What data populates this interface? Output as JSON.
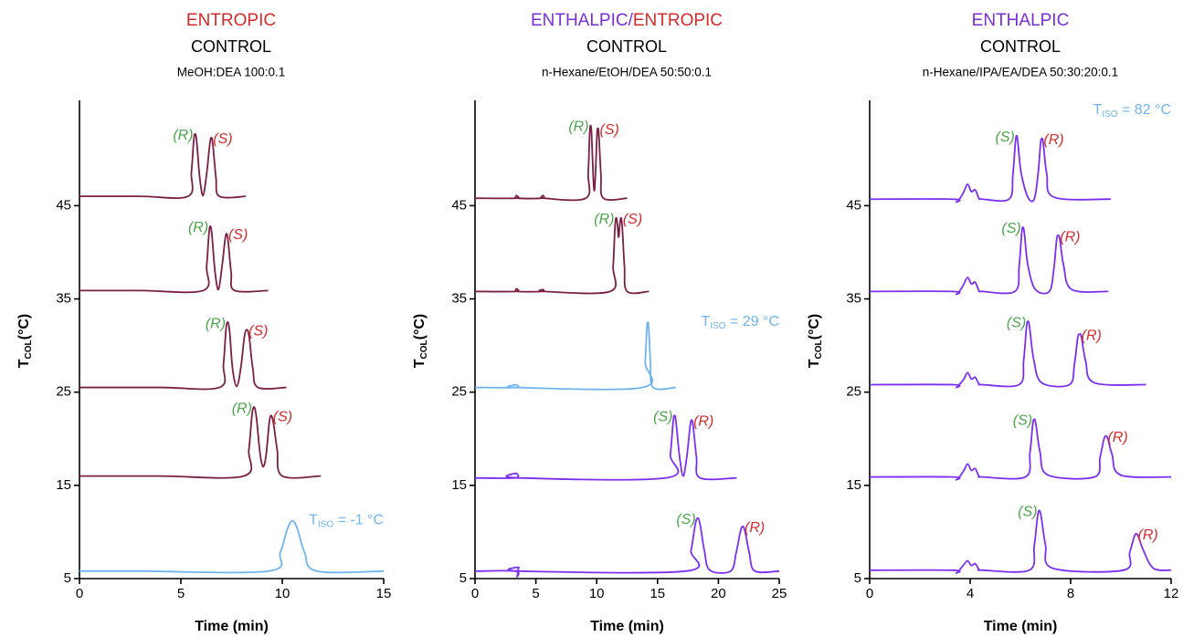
{
  "chart_data": [
    {
      "type": "line",
      "title": [
        {
          "text": "ENTROPIC",
          "color": "#d42a2a"
        }
      ],
      "subtitle": "CONTROL",
      "mobile_phase": "MeOH:DEA 100:0.1",
      "xlabel": "Time (min)",
      "ylabel": {
        "main": "T",
        "sub": "COL",
        "rest": "(°C)"
      },
      "xlim": [
        0,
        15
      ],
      "xticks": [
        0,
        5,
        10,
        15
      ],
      "ylim": [
        5,
        56
      ],
      "yticks": [
        5,
        15,
        25,
        35,
        45
      ],
      "series": [
        {
          "color": "#6fb4f0",
          "annotation": {
            "main": "T",
            "sub": "ISO",
            "rest": " = -1 °C"
          },
          "x": [
            0,
            3,
            9.3,
            9.9,
            10.25,
            10.5,
            10.75,
            11.1,
            11.7,
            15
          ],
          "values": [
            5.8,
            5.8,
            5.8,
            7.8,
            10.3,
            11.2,
            10.3,
            7.8,
            5.8,
            5.8
          ]
        },
        {
          "color": "#7a1f45",
          "labels": [
            {
              "text": "(R)",
              "color": "#4aa64a"
            },
            {
              "text": "(S)",
              "color": "#d42a2a"
            }
          ],
          "x": [
            0,
            4,
            8.1,
            8.35,
            8.5,
            8.6,
            8.72,
            8.9,
            9.05,
            9.2,
            9.35,
            9.45,
            9.57,
            9.75,
            10.0,
            11.9
          ],
          "values": [
            16,
            16,
            16,
            18.8,
            22.4,
            23.4,
            22.4,
            18.5,
            17.0,
            18.2,
            21.6,
            22.5,
            21.6,
            18.8,
            16.0,
            16.0
          ]
        },
        {
          "color": "#7a1f45",
          "labels": [
            {
              "text": "(R)",
              "color": "#4aa64a"
            },
            {
              "text": "(S)",
              "color": "#d42a2a"
            }
          ],
          "x": [
            0,
            4,
            6.9,
            7.1,
            7.22,
            7.3,
            7.4,
            7.55,
            7.75,
            7.95,
            8.13,
            8.25,
            8.37,
            8.55,
            8.8,
            10.2
          ],
          "values": [
            25.5,
            25.5,
            25.5,
            28,
            31.6,
            32.5,
            31.6,
            27.5,
            25.6,
            27.5,
            30.9,
            31.7,
            30.9,
            27.5,
            25.5,
            25.5
          ]
        },
        {
          "color": "#7a1f45",
          "labels": [
            {
              "text": "(R)",
              "color": "#4aa64a"
            },
            {
              "text": "(S)",
              "color": "#d42a2a"
            }
          ],
          "x": [
            0,
            3,
            6.1,
            6.27,
            6.38,
            6.45,
            6.53,
            6.68,
            6.85,
            7.03,
            7.17,
            7.25,
            7.33,
            7.48,
            7.65,
            9.3
          ],
          "values": [
            35.9,
            35.9,
            35.9,
            38.5,
            41.9,
            42.8,
            41.9,
            38.0,
            36.0,
            38.5,
            41.2,
            42.0,
            41.2,
            37.8,
            35.9,
            35.9
          ]
        },
        {
          "color": "#7a1f45",
          "labels": [
            {
              "text": "(R)",
              "color": "#4aa64a"
            },
            {
              "text": "(S)",
              "color": "#d42a2a"
            }
          ],
          "x": [
            0,
            3,
            5.35,
            5.52,
            5.63,
            5.7,
            5.78,
            5.93,
            6.1,
            6.28,
            6.42,
            6.5,
            6.58,
            6.73,
            6.9,
            8.2
          ],
          "values": [
            46,
            46,
            46,
            48.6,
            51.9,
            52.7,
            51.9,
            48.0,
            46.1,
            48.6,
            51.5,
            52.3,
            51.5,
            48,
            46,
            46
          ]
        }
      ]
    },
    {
      "type": "line",
      "title": [
        {
          "text": "ENTHALPIC/",
          "color": "#7a2ed8"
        },
        {
          "text": "ENTROPIC",
          "color": "#d42a2a"
        }
      ],
      "subtitle": "CONTROL",
      "mobile_phase": "n-Hexane/EtOH/DEA 50:50:0.1",
      "xlabel": "Time (min)",
      "ylabel": {
        "main": "T",
        "sub": "COL",
        "rest": "(°C)"
      },
      "xlim": [
        0,
        25
      ],
      "xticks": [
        0,
        5,
        10,
        15,
        20,
        25
      ],
      "ylim": [
        5,
        56
      ],
      "yticks": [
        5,
        15,
        25,
        35,
        45
      ],
      "series": [
        {
          "color": "#7b2ff0",
          "labels": [
            {
              "text": "(S)",
              "color": "#4aa64a"
            },
            {
              "text": "(R)",
              "color": "#d42a2a"
            }
          ],
          "x": [
            0,
            3.3,
            3.45,
            3.6,
            3.8,
            17.3,
            17.75,
            18.1,
            18.3,
            18.5,
            18.85,
            19.3,
            21.0,
            21.45,
            21.8,
            22.0,
            22.2,
            22.55,
            23.0,
            25
          ],
          "values": [
            5.8,
            5.8,
            5.2,
            6.2,
            5.8,
            5.8,
            8.0,
            10.8,
            11.5,
            10.8,
            8.0,
            5.9,
            5.8,
            7.7,
            10.0,
            10.6,
            10.0,
            7.7,
            5.8,
            5.8
          ]
        },
        {
          "color": "#7b2ff0",
          "labels": [
            {
              "text": "(S)",
              "color": "#4aa64a"
            },
            {
              "text": "(R)",
              "color": "#d42a2a"
            }
          ],
          "x": [
            0,
            3.3,
            3.4,
            3.5,
            15.7,
            16.05,
            16.28,
            16.4,
            16.52,
            16.8,
            17.1,
            17.4,
            17.67,
            17.8,
            17.93,
            18.2,
            18.5,
            21.5
          ],
          "values": [
            15.8,
            15.8,
            16.3,
            15.8,
            15.8,
            18.3,
            21.8,
            22.5,
            21.8,
            18.2,
            16.0,
            18.0,
            21.3,
            22.0,
            21.3,
            18.0,
            15.8,
            15.8
          ]
        },
        {
          "color": "#6fb4f0",
          "annotation": {
            "main": "T",
            "sub": "ISO",
            "rest": " = 29 °C"
          },
          "x": [
            0,
            3.3,
            3.4,
            3.5,
            13.75,
            13.98,
            14.12,
            14.2,
            14.28,
            14.42,
            14.65,
            16.5
          ],
          "values": [
            25.5,
            25.5,
            25.8,
            25.5,
            25.5,
            28.2,
            31.8,
            32.5,
            31.8,
            28.2,
            25.5,
            25.5
          ]
        },
        {
          "color": "#7a1f45",
          "labels": [
            {
              "text": "(R)",
              "color": "#4aa64a"
            },
            {
              "text": "(S)",
              "color": "#d42a2a"
            }
          ],
          "x": [
            0,
            3.3,
            3.4,
            3.5,
            5.5,
            5.6,
            5.7,
            11.1,
            11.35,
            11.5,
            11.6,
            11.7,
            11.8,
            11.9,
            12.0,
            12.1,
            12.28,
            12.5,
            14.3
          ],
          "values": [
            35.8,
            35.8,
            36.1,
            35.8,
            35.8,
            36.0,
            35.8,
            35.8,
            38.5,
            42.7,
            43.7,
            43.0,
            41.6,
            43.0,
            43.7,
            42.7,
            38.5,
            35.8,
            35.8
          ]
        },
        {
          "color": "#7a1f45",
          "labels": [
            {
              "text": "(R)",
              "color": "#4aa64a"
            },
            {
              "text": "(S)",
              "color": "#d42a2a"
            }
          ],
          "x": [
            0,
            3.3,
            3.4,
            3.5,
            5.5,
            5.6,
            5.7,
            9.1,
            9.3,
            9.42,
            9.5,
            9.58,
            9.7,
            9.8,
            9.9,
            10.02,
            10.1,
            10.18,
            10.35,
            10.55,
            12.5
          ],
          "values": [
            45.8,
            45.8,
            46.1,
            45.8,
            45.8,
            46.1,
            45.8,
            45.8,
            48.5,
            52.7,
            53.6,
            52.7,
            48.5,
            46.6,
            48.5,
            52.5,
            53.3,
            52.5,
            48.3,
            45.8,
            45.8
          ]
        }
      ]
    },
    {
      "type": "line",
      "title": [
        {
          "text": "ENTHALPIC",
          "color": "#7a2ed8"
        }
      ],
      "subtitle": "CONTROL",
      "mobile_phase": "n-Hexane/IPA/EA/DEA 50:30:20:0.1",
      "xlabel": "Time (min)",
      "ylabel": {
        "main": "T",
        "sub": "COL",
        "rest": "(°C)"
      },
      "annotation": {
        "main": "T",
        "sub": "ISO",
        "rest": " = 82 °C",
        "color": "#6fb4f0"
      },
      "xlim": [
        0,
        12
      ],
      "xticks": [
        0,
        4,
        8,
        12
      ],
      "ylim": [
        5,
        56
      ],
      "yticks": [
        5,
        15,
        25,
        35,
        45
      ],
      "series": [
        {
          "color": "#7b2ff0",
          "labels": [
            {
              "text": "(S)",
              "color": "#4aa64a"
            },
            {
              "text": "(R)",
              "color": "#d42a2a"
            }
          ],
          "x": [
            0,
            3.3,
            3.45,
            3.6,
            3.75,
            3.9,
            4.05,
            4.2,
            4.35,
            4.5,
            6.35,
            6.55,
            6.68,
            6.75,
            6.83,
            7.0,
            7.3,
            10.1,
            10.35,
            10.52,
            10.6,
            10.7,
            10.9,
            11.3,
            12
          ],
          "values": [
            5.9,
            5.9,
            5.6,
            6.0,
            6.5,
            6.9,
            6.4,
            6.6,
            6.0,
            5.9,
            5.9,
            8.5,
            11.6,
            12.3,
            11.6,
            8.6,
            6.1,
            5.9,
            7.8,
            9.4,
            9.8,
            9.5,
            8.0,
            6.1,
            5.9
          ]
        },
        {
          "color": "#7b2ff0",
          "labels": [
            {
              "text": "(S)",
              "color": "#4aa64a"
            },
            {
              "text": "(R)",
              "color": "#d42a2a"
            }
          ],
          "x": [
            0,
            3.3,
            3.45,
            3.6,
            3.75,
            3.9,
            4.05,
            4.2,
            4.35,
            4.5,
            6.2,
            6.38,
            6.49,
            6.55,
            6.62,
            6.78,
            7.1,
            8.95,
            9.17,
            9.32,
            9.4,
            9.48,
            9.65,
            10.0,
            12
          ],
          "values": [
            15.9,
            15.9,
            15.6,
            16.0,
            16.6,
            17.3,
            16.6,
            16.8,
            16.0,
            15.9,
            15.9,
            18.5,
            21.5,
            22.1,
            21.5,
            18.6,
            16.1,
            15.9,
            18.0,
            19.9,
            20.3,
            20.0,
            18.3,
            16.1,
            15.9
          ]
        },
        {
          "color": "#7b2ff0",
          "labels": [
            {
              "text": "(S)",
              "color": "#4aa64a"
            },
            {
              "text": "(R)",
              "color": "#d42a2a"
            }
          ],
          "x": [
            0,
            3.3,
            3.45,
            3.6,
            3.75,
            3.9,
            4.05,
            4.2,
            4.35,
            4.5,
            5.95,
            6.13,
            6.24,
            6.3,
            6.37,
            6.53,
            6.85,
            7.95,
            8.15,
            8.28,
            8.35,
            8.43,
            8.6,
            8.95,
            11
          ],
          "values": [
            25.8,
            25.8,
            25.5,
            25.9,
            26.4,
            27.1,
            26.4,
            26.6,
            25.9,
            25.8,
            25.8,
            28.4,
            31.9,
            32.6,
            31.9,
            28.5,
            26.0,
            25.8,
            28.0,
            30.8,
            31.2,
            30.9,
            28.3,
            26.0,
            25.8
          ]
        },
        {
          "color": "#7b2ff0",
          "labels": [
            {
              "text": "(S)",
              "color": "#4aa64a"
            },
            {
              "text": "(R)",
              "color": "#d42a2a"
            }
          ],
          "x": [
            0,
            3.3,
            3.45,
            3.6,
            3.75,
            3.9,
            4.05,
            4.2,
            4.35,
            4.5,
            5.78,
            5.95,
            6.05,
            6.1,
            6.16,
            6.3,
            6.6,
            7.15,
            7.33,
            7.44,
            7.5,
            7.57,
            7.72,
            8.05,
            9.5
          ],
          "values": [
            35.8,
            35.8,
            35.5,
            35.9,
            36.6,
            37.3,
            36.6,
            36.8,
            35.9,
            35.8,
            35.8,
            38.5,
            42.0,
            42.7,
            42.0,
            38.6,
            36.0,
            35.8,
            38.2,
            41.3,
            41.8,
            41.4,
            38.6,
            36.0,
            35.8
          ]
        },
        {
          "color": "#7b2ff0",
          "labels": [
            {
              "text": "(S)",
              "color": "#4aa64a"
            },
            {
              "text": "(R)",
              "color": "#d42a2a"
            }
          ],
          "x": [
            0,
            3.3,
            3.45,
            3.6,
            3.75,
            3.9,
            4.05,
            4.2,
            4.35,
            4.5,
            5.55,
            5.7,
            5.8,
            5.85,
            5.9,
            6.03,
            6.3,
            6.55,
            6.7,
            6.8,
            6.85,
            6.91,
            7.05,
            7.35,
            9.6
          ],
          "values": [
            45.7,
            45.7,
            45.4,
            45.8,
            46.5,
            47.3,
            46.5,
            46.7,
            45.8,
            45.7,
            45.7,
            48.3,
            51.8,
            52.5,
            51.8,
            48.5,
            45.9,
            45.7,
            48.3,
            51.6,
            52.2,
            51.7,
            48.4,
            45.9,
            45.7
          ]
        }
      ]
    }
  ]
}
